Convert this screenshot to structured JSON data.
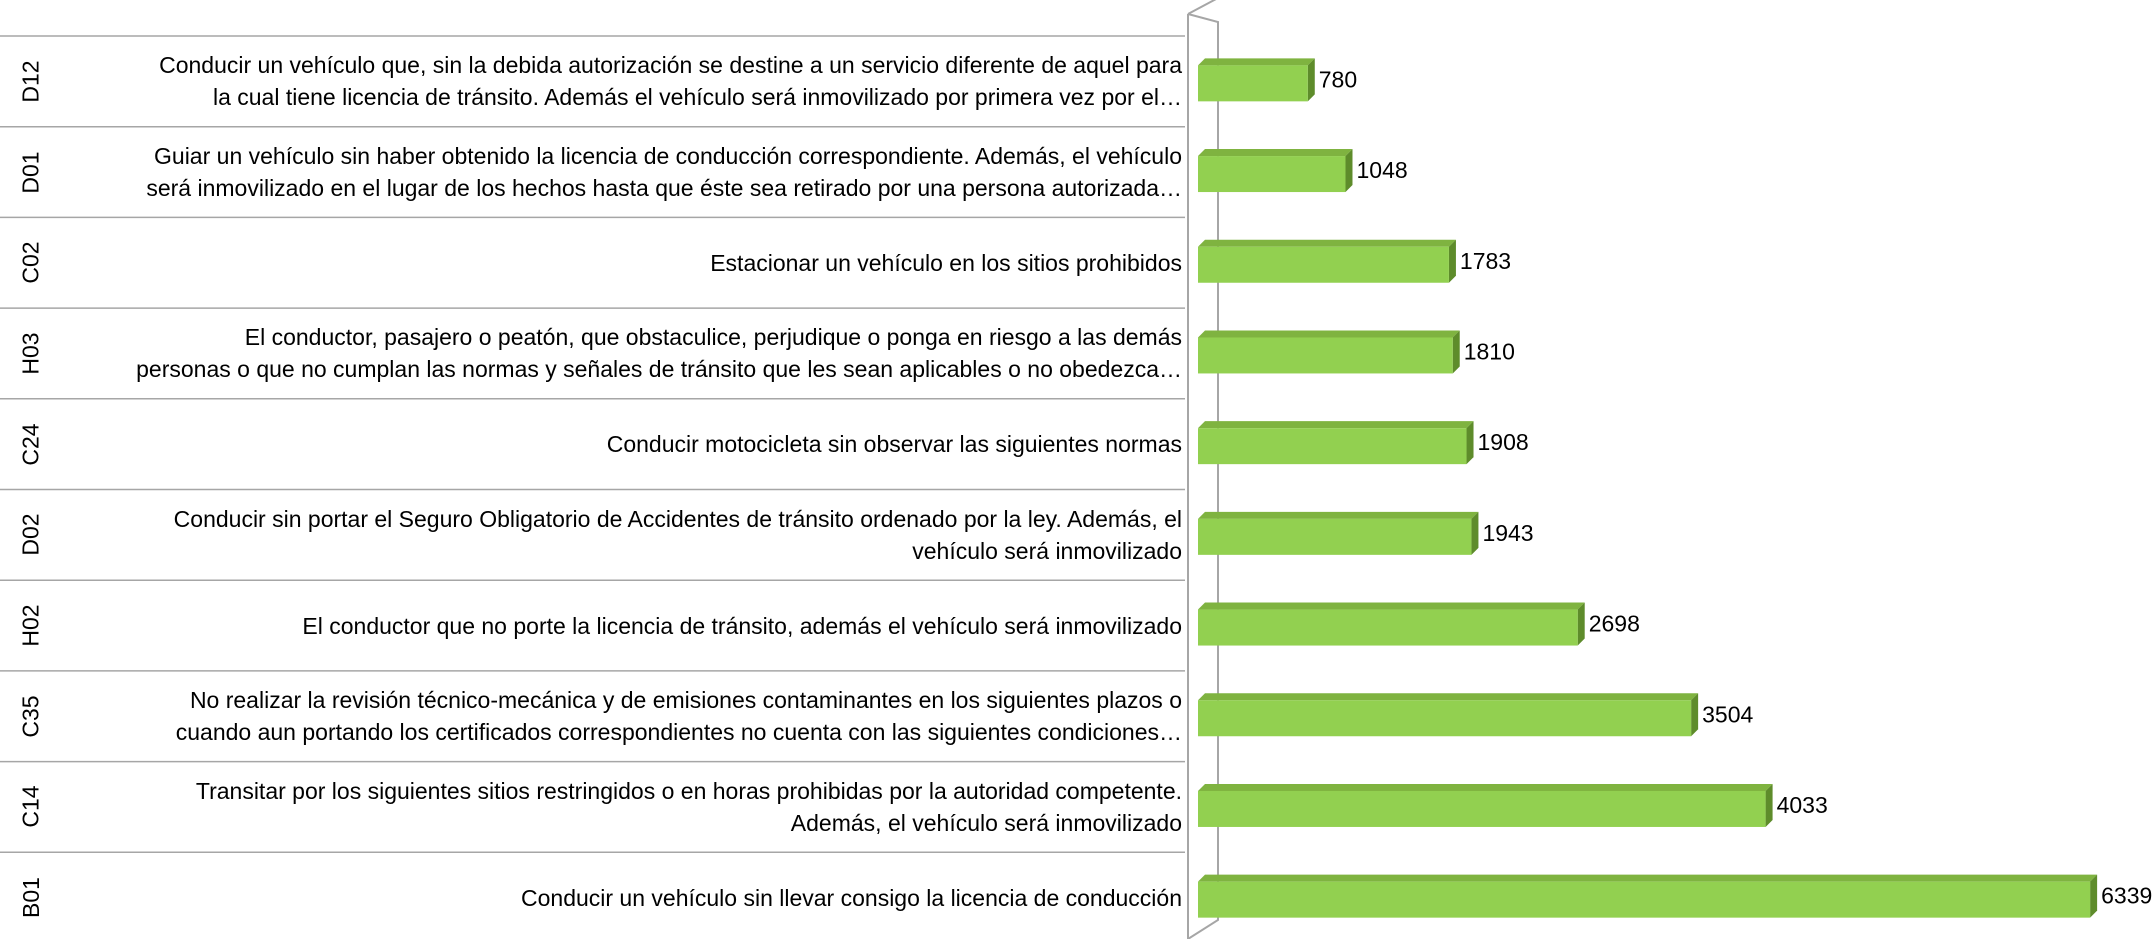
{
  "chart_data": {
    "type": "bar",
    "orientation": "horizontal",
    "codes": [
      "D12",
      "D01",
      "C02",
      "H03",
      "C24",
      "D02",
      "H02",
      "C35",
      "C14",
      "B01"
    ],
    "categories": [
      "Conducir un vehículo que, sin la debida autorización se destine a un servicio diferente de aquel para\nla cual tiene licencia de tránsito.  Además el vehículo será inmovilizado por primera vez por el…",
      "Guiar un vehículo sin haber obtenido la licencia de conducción correspondiente. Además, el vehículo\nserá inmovilizado en el lugar de los hechos hasta que éste sea retirado por una persona autorizada…",
      "Estacionar un vehículo en los sitios prohibidos",
      "El conductor, pasajero o peatón, que obstaculice, perjudique o ponga en riesgo a las demás\npersonas o que no cumplan las normas y señales de tránsito que les sean aplicables o no obedezca…",
      "Conducir motocicleta sin observar las siguientes normas",
      "Conducir sin portar el Seguro Obligatorio de Accidentes de tránsito ordenado por la ley. Además, el\nvehículo será inmovilizado",
      "El conductor que no porte la licencia de tránsito, además el vehículo será inmovilizado",
      "No realizar la revisión técnico-mecánica y de emisiones contaminantes en los siguientes plazos o\ncuando aun portando los certificados correspondientes no cuenta con las siguientes condiciones…",
      "Transitar por los siguientes sitios restringidos o en horas prohibidas por la autoridad competente.\nAdemás, el vehículo será inmovilizado",
      "Conducir un vehículo sin llevar consigo la licencia de conducción"
    ],
    "values": [
      780,
      1048,
      1783,
      1810,
      1908,
      1943,
      2698,
      3504,
      4033,
      6339
    ],
    "color": "#92d050",
    "xlim": [
      0,
      6800
    ]
  }
}
